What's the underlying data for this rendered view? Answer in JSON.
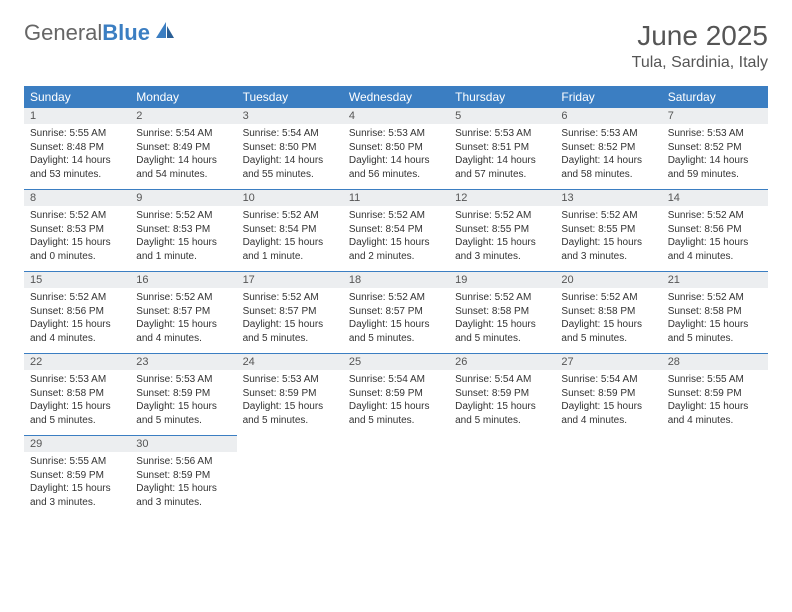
{
  "logo": {
    "part1": "General",
    "part2": "Blue"
  },
  "title": "June 2025",
  "location": "Tula, Sardinia, Italy",
  "colors": {
    "header_bg": "#3b7ec2",
    "header_text": "#ffffff",
    "daynum_bg": "#eceef0",
    "daynum_text": "#555555",
    "body_text": "#333333",
    "title_text": "#555555",
    "border": "#3b7ec2"
  },
  "weekdays": [
    "Sunday",
    "Monday",
    "Tuesday",
    "Wednesday",
    "Thursday",
    "Friday",
    "Saturday"
  ],
  "weeks": [
    [
      {
        "n": "1",
        "sr": "Sunrise: 5:55 AM",
        "ss": "Sunset: 8:48 PM",
        "d1": "Daylight: 14 hours",
        "d2": "and 53 minutes."
      },
      {
        "n": "2",
        "sr": "Sunrise: 5:54 AM",
        "ss": "Sunset: 8:49 PM",
        "d1": "Daylight: 14 hours",
        "d2": "and 54 minutes."
      },
      {
        "n": "3",
        "sr": "Sunrise: 5:54 AM",
        "ss": "Sunset: 8:50 PM",
        "d1": "Daylight: 14 hours",
        "d2": "and 55 minutes."
      },
      {
        "n": "4",
        "sr": "Sunrise: 5:53 AM",
        "ss": "Sunset: 8:50 PM",
        "d1": "Daylight: 14 hours",
        "d2": "and 56 minutes."
      },
      {
        "n": "5",
        "sr": "Sunrise: 5:53 AM",
        "ss": "Sunset: 8:51 PM",
        "d1": "Daylight: 14 hours",
        "d2": "and 57 minutes."
      },
      {
        "n": "6",
        "sr": "Sunrise: 5:53 AM",
        "ss": "Sunset: 8:52 PM",
        "d1": "Daylight: 14 hours",
        "d2": "and 58 minutes."
      },
      {
        "n": "7",
        "sr": "Sunrise: 5:53 AM",
        "ss": "Sunset: 8:52 PM",
        "d1": "Daylight: 14 hours",
        "d2": "and 59 minutes."
      }
    ],
    [
      {
        "n": "8",
        "sr": "Sunrise: 5:52 AM",
        "ss": "Sunset: 8:53 PM",
        "d1": "Daylight: 15 hours",
        "d2": "and 0 minutes."
      },
      {
        "n": "9",
        "sr": "Sunrise: 5:52 AM",
        "ss": "Sunset: 8:53 PM",
        "d1": "Daylight: 15 hours",
        "d2": "and 1 minute."
      },
      {
        "n": "10",
        "sr": "Sunrise: 5:52 AM",
        "ss": "Sunset: 8:54 PM",
        "d1": "Daylight: 15 hours",
        "d2": "and 1 minute."
      },
      {
        "n": "11",
        "sr": "Sunrise: 5:52 AM",
        "ss": "Sunset: 8:54 PM",
        "d1": "Daylight: 15 hours",
        "d2": "and 2 minutes."
      },
      {
        "n": "12",
        "sr": "Sunrise: 5:52 AM",
        "ss": "Sunset: 8:55 PM",
        "d1": "Daylight: 15 hours",
        "d2": "and 3 minutes."
      },
      {
        "n": "13",
        "sr": "Sunrise: 5:52 AM",
        "ss": "Sunset: 8:55 PM",
        "d1": "Daylight: 15 hours",
        "d2": "and 3 minutes."
      },
      {
        "n": "14",
        "sr": "Sunrise: 5:52 AM",
        "ss": "Sunset: 8:56 PM",
        "d1": "Daylight: 15 hours",
        "d2": "and 4 minutes."
      }
    ],
    [
      {
        "n": "15",
        "sr": "Sunrise: 5:52 AM",
        "ss": "Sunset: 8:56 PM",
        "d1": "Daylight: 15 hours",
        "d2": "and 4 minutes."
      },
      {
        "n": "16",
        "sr": "Sunrise: 5:52 AM",
        "ss": "Sunset: 8:57 PM",
        "d1": "Daylight: 15 hours",
        "d2": "and 4 minutes."
      },
      {
        "n": "17",
        "sr": "Sunrise: 5:52 AM",
        "ss": "Sunset: 8:57 PM",
        "d1": "Daylight: 15 hours",
        "d2": "and 5 minutes."
      },
      {
        "n": "18",
        "sr": "Sunrise: 5:52 AM",
        "ss": "Sunset: 8:57 PM",
        "d1": "Daylight: 15 hours",
        "d2": "and 5 minutes."
      },
      {
        "n": "19",
        "sr": "Sunrise: 5:52 AM",
        "ss": "Sunset: 8:58 PM",
        "d1": "Daylight: 15 hours",
        "d2": "and 5 minutes."
      },
      {
        "n": "20",
        "sr": "Sunrise: 5:52 AM",
        "ss": "Sunset: 8:58 PM",
        "d1": "Daylight: 15 hours",
        "d2": "and 5 minutes."
      },
      {
        "n": "21",
        "sr": "Sunrise: 5:52 AM",
        "ss": "Sunset: 8:58 PM",
        "d1": "Daylight: 15 hours",
        "d2": "and 5 minutes."
      }
    ],
    [
      {
        "n": "22",
        "sr": "Sunrise: 5:53 AM",
        "ss": "Sunset: 8:58 PM",
        "d1": "Daylight: 15 hours",
        "d2": "and 5 minutes."
      },
      {
        "n": "23",
        "sr": "Sunrise: 5:53 AM",
        "ss": "Sunset: 8:59 PM",
        "d1": "Daylight: 15 hours",
        "d2": "and 5 minutes."
      },
      {
        "n": "24",
        "sr": "Sunrise: 5:53 AM",
        "ss": "Sunset: 8:59 PM",
        "d1": "Daylight: 15 hours",
        "d2": "and 5 minutes."
      },
      {
        "n": "25",
        "sr": "Sunrise: 5:54 AM",
        "ss": "Sunset: 8:59 PM",
        "d1": "Daylight: 15 hours",
        "d2": "and 5 minutes."
      },
      {
        "n": "26",
        "sr": "Sunrise: 5:54 AM",
        "ss": "Sunset: 8:59 PM",
        "d1": "Daylight: 15 hours",
        "d2": "and 5 minutes."
      },
      {
        "n": "27",
        "sr": "Sunrise: 5:54 AM",
        "ss": "Sunset: 8:59 PM",
        "d1": "Daylight: 15 hours",
        "d2": "and 4 minutes."
      },
      {
        "n": "28",
        "sr": "Sunrise: 5:55 AM",
        "ss": "Sunset: 8:59 PM",
        "d1": "Daylight: 15 hours",
        "d2": "and 4 minutes."
      }
    ],
    [
      {
        "n": "29",
        "sr": "Sunrise: 5:55 AM",
        "ss": "Sunset: 8:59 PM",
        "d1": "Daylight: 15 hours",
        "d2": "and 3 minutes."
      },
      {
        "n": "30",
        "sr": "Sunrise: 5:56 AM",
        "ss": "Sunset: 8:59 PM",
        "d1": "Daylight: 15 hours",
        "d2": "and 3 minutes."
      },
      null,
      null,
      null,
      null,
      null
    ]
  ]
}
